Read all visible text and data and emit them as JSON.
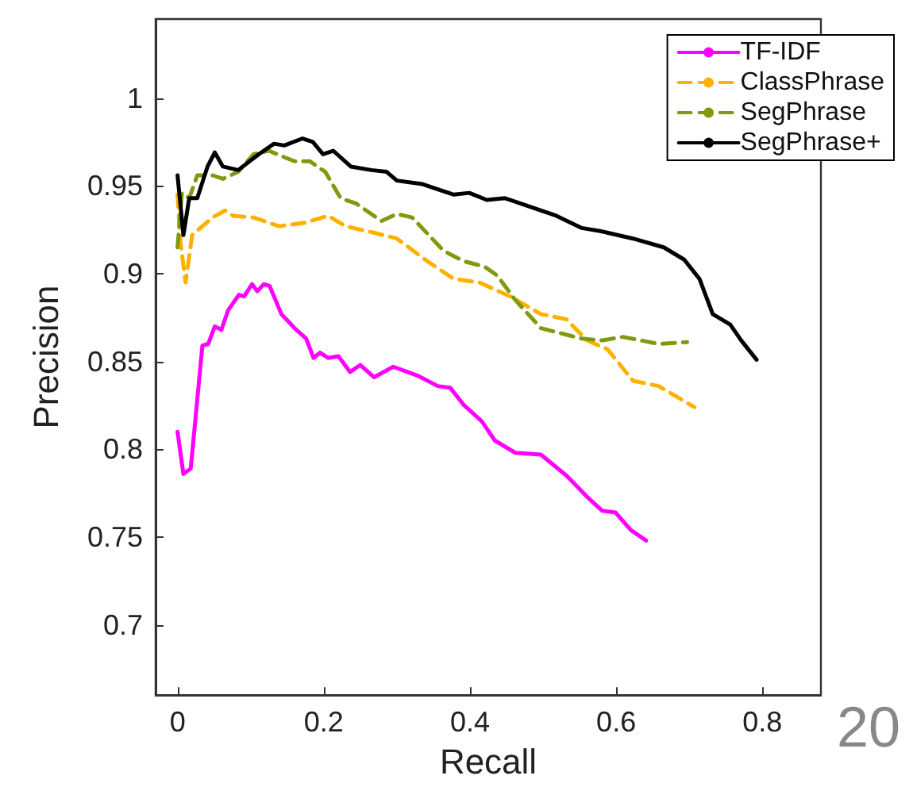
{
  "chart_data": {
    "type": "line",
    "xlabel": "Recall",
    "ylabel": "Precision",
    "xlim": [
      -0.03,
      0.88
    ],
    "ylim": [
      0.66,
      1.045
    ],
    "xticks": [
      0,
      0.2,
      0.4,
      0.6,
      0.8
    ],
    "yticks": [
      0.7,
      0.75,
      0.8,
      0.85,
      0.9,
      0.95,
      1
    ],
    "grid": false,
    "legend": "top right",
    "marker": "none",
    "annotations": [
      "20"
    ],
    "series": [
      {
        "name": "TF-IDF",
        "color": "#ff00ff",
        "line_style": "solid",
        "x": [
          0,
          0.008,
          0.018,
          0.034,
          0.042,
          0.051,
          0.06,
          0.069,
          0.084,
          0.091,
          0.102,
          0.109,
          0.118,
          0.126,
          0.142,
          0.16,
          0.176,
          0.186,
          0.195,
          0.206,
          0.22,
          0.236,
          0.25,
          0.269,
          0.295,
          0.328,
          0.356,
          0.373,
          0.392,
          0.416,
          0.434,
          0.462,
          0.497,
          0.532,
          0.56,
          0.581,
          0.599,
          0.62,
          0.641
        ],
        "values": [
          0.81,
          0.786,
          0.789,
          0.859,
          0.86,
          0.87,
          0.868,
          0.879,
          0.888,
          0.887,
          0.894,
          0.89,
          0.894,
          0.893,
          0.877,
          0.869,
          0.863,
          0.852,
          0.855,
          0.852,
          0.853,
          0.844,
          0.848,
          0.841,
          0.847,
          0.842,
          0.836,
          0.835,
          0.825,
          0.816,
          0.805,
          0.798,
          0.797,
          0.785,
          0.773,
          0.765,
          0.764,
          0.754,
          0.748
        ]
      },
      {
        "name": "ClassPhrase",
        "color": "#ffb000",
        "line_style": "dashed",
        "x": [
          0,
          0.004,
          0.011,
          0.02,
          0.034,
          0.048,
          0.065,
          0.076,
          0.104,
          0.139,
          0.174,
          0.206,
          0.23,
          0.272,
          0.3,
          0.342,
          0.378,
          0.413,
          0.455,
          0.497,
          0.532,
          0.56,
          0.588,
          0.623,
          0.658,
          0.707
        ],
        "values": [
          0.945,
          0.918,
          0.895,
          0.922,
          0.927,
          0.932,
          0.936,
          0.933,
          0.932,
          0.927,
          0.929,
          0.933,
          0.927,
          0.923,
          0.92,
          0.907,
          0.897,
          0.895,
          0.887,
          0.877,
          0.874,
          0.862,
          0.857,
          0.839,
          0.836,
          0.824
        ]
      },
      {
        "name": "SegPhrase",
        "color": "#7f9a0f",
        "line_style": "dashed",
        "x": [
          0,
          0.006,
          0.016,
          0.027,
          0.048,
          0.062,
          0.083,
          0.104,
          0.125,
          0.142,
          0.16,
          0.181,
          0.202,
          0.223,
          0.244,
          0.258,
          0.279,
          0.3,
          0.321,
          0.364,
          0.392,
          0.42,
          0.437,
          0.462,
          0.497,
          0.525,
          0.553,
          0.581,
          0.609,
          0.658,
          0.697
        ],
        "values": [
          0.915,
          0.946,
          0.943,
          0.956,
          0.956,
          0.954,
          0.958,
          0.968,
          0.97,
          0.967,
          0.964,
          0.964,
          0.958,
          0.943,
          0.94,
          0.936,
          0.93,
          0.934,
          0.932,
          0.913,
          0.907,
          0.904,
          0.899,
          0.885,
          0.869,
          0.866,
          0.863,
          0.862,
          0.864,
          0.86,
          0.861
        ]
      },
      {
        "name": "SegPhrase+",
        "color": "#000000",
        "line_style": "solid",
        "x": [
          0,
          0.008,
          0.016,
          0.027,
          0.041,
          0.051,
          0.062,
          0.083,
          0.111,
          0.132,
          0.146,
          0.171,
          0.185,
          0.199,
          0.213,
          0.237,
          0.265,
          0.286,
          0.3,
          0.335,
          0.356,
          0.378,
          0.399,
          0.423,
          0.448,
          0.483,
          0.518,
          0.553,
          0.581,
          0.623,
          0.665,
          0.693,
          0.714,
          0.732,
          0.756,
          0.771,
          0.792
        ],
        "values": [
          0.956,
          0.922,
          0.943,
          0.943,
          0.961,
          0.969,
          0.961,
          0.959,
          0.968,
          0.974,
          0.973,
          0.977,
          0.975,
          0.968,
          0.97,
          0.961,
          0.959,
          0.958,
          0.953,
          0.951,
          0.948,
          0.945,
          0.946,
          0.942,
          0.943,
          0.938,
          0.933,
          0.926,
          0.924,
          0.92,
          0.915,
          0.908,
          0.897,
          0.877,
          0.871,
          0.862,
          0.851
        ]
      }
    ]
  }
}
